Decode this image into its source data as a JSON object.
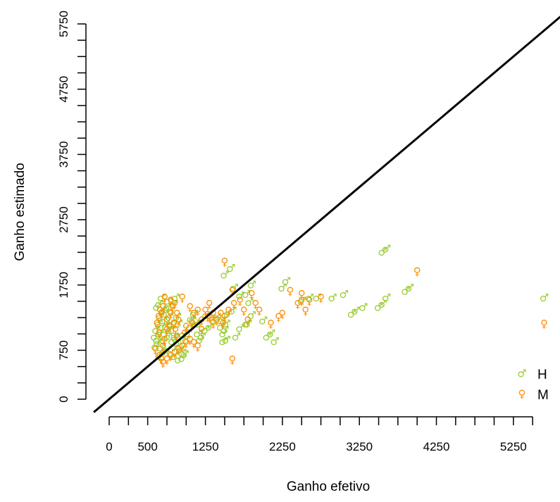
{
  "chart_data": {
    "type": "scatter",
    "xlabel": "Ganho efetivo",
    "ylabel": "Ganho estimado",
    "xlim": [
      0,
      5900
    ],
    "ylim": [
      0,
      5900
    ],
    "x_ticks": [
      0,
      250,
      500,
      750,
      1000,
      1250,
      1500,
      1750,
      2000,
      2250,
      2500,
      2750,
      3000,
      3250,
      3500,
      3750,
      4000,
      4250,
      4500,
      4750,
      5000,
      5250,
      5500
    ],
    "x_tick_labels": [
      0,
      500,
      1250,
      2250,
      3250,
      4250,
      5250
    ],
    "y_ticks": [
      0,
      250,
      500,
      750,
      1000,
      1250,
      1500,
      1750,
      2000,
      2250,
      2500,
      2750,
      3000,
      3250,
      3500,
      3750,
      4000,
      4250,
      4500,
      4750,
      5000,
      5250,
      5500,
      5750
    ],
    "y_tick_labels": [
      0,
      750,
      1750,
      2750,
      3750,
      4750,
      5750
    ],
    "reference_line": {
      "slope": 1,
      "intercept": 0,
      "color": "#000000"
    },
    "legend_position": "bottom-right",
    "series": [
      {
        "name": "H",
        "symbol": "♂",
        "color": "#9acd32",
        "points": [
          [
            1500,
            1050
          ],
          [
            1520,
            1150
          ],
          [
            1480,
            1000
          ],
          [
            1450,
            1100
          ],
          [
            1460,
            1200
          ],
          [
            1540,
            1300
          ],
          [
            1600,
            1350
          ],
          [
            1620,
            1700
          ],
          [
            1700,
            1580
          ],
          [
            1500,
            1900
          ],
          [
            1580,
            2000
          ],
          [
            1780,
            1600
          ],
          [
            1820,
            1480
          ],
          [
            1850,
            1280
          ],
          [
            1780,
            1150
          ],
          [
            1700,
            1080
          ],
          [
            1650,
            950
          ],
          [
            1520,
            900
          ],
          [
            1480,
            880
          ],
          [
            1850,
            1750
          ],
          [
            1800,
            1150
          ],
          [
            2000,
            1200
          ],
          [
            2050,
            950
          ],
          [
            2100,
            1000
          ],
          [
            2150,
            880
          ],
          [
            2250,
            1700
          ],
          [
            2300,
            1800
          ],
          [
            2500,
            1500
          ],
          [
            2600,
            1550
          ],
          [
            2700,
            1550
          ],
          [
            2900,
            1550
          ],
          [
            3050,
            1600
          ],
          [
            3150,
            1300
          ],
          [
            3200,
            1350
          ],
          [
            3300,
            1400
          ],
          [
            3500,
            1400
          ],
          [
            3550,
            1450
          ],
          [
            3600,
            1550
          ],
          [
            3550,
            2250
          ],
          [
            3600,
            2300
          ],
          [
            3850,
            1650
          ],
          [
            3900,
            1700
          ],
          [
            5650,
            1550
          ],
          [
            600,
            800
          ],
          [
            620,
            900
          ],
          [
            650,
            1000
          ],
          [
            680,
            1100
          ],
          [
            700,
            1200
          ],
          [
            720,
            1300
          ],
          [
            750,
            1400
          ],
          [
            760,
            1500
          ],
          [
            780,
            1250
          ],
          [
            800,
            1150
          ],
          [
            820,
            1050
          ],
          [
            850,
            950
          ],
          [
            880,
            850
          ],
          [
            900,
            800
          ],
          [
            920,
            750
          ],
          [
            950,
            700
          ],
          [
            980,
            680
          ],
          [
            1000,
            900
          ],
          [
            1020,
            1000
          ],
          [
            1050,
            1100
          ],
          [
            1080,
            1200
          ],
          [
            1100,
            1300
          ],
          [
            1120,
            1150
          ],
          [
            1150,
            1000
          ],
          [
            1180,
            900
          ],
          [
            1200,
            950
          ],
          [
            1250,
            1050
          ],
          [
            1300,
            1100
          ],
          [
            1350,
            1200
          ],
          [
            1400,
            1250
          ],
          [
            650,
            650
          ],
          [
            700,
            700
          ],
          [
            750,
            750
          ],
          [
            800,
            700
          ],
          [
            850,
            650
          ],
          [
            900,
            600
          ],
          [
            950,
            620
          ],
          [
            700,
            900
          ],
          [
            720,
            1000
          ],
          [
            740,
            1100
          ],
          [
            760,
            950
          ],
          [
            780,
            1050
          ],
          [
            800,
            1350
          ],
          [
            840,
            1450
          ],
          [
            860,
            1550
          ],
          [
            880,
            1250
          ],
          [
            900,
            1150
          ],
          [
            650,
            1450
          ],
          [
            680,
            1550
          ],
          [
            620,
            1400
          ],
          [
            700,
            1350
          ],
          [
            660,
            1250
          ],
          [
            640,
            1150
          ],
          [
            610,
            1050
          ],
          [
            590,
            950
          ],
          [
            630,
            850
          ],
          [
            670,
            780
          ],
          [
            820,
            880
          ],
          [
            860,
            920
          ],
          [
            960,
            980
          ],
          [
            1060,
            1220
          ],
          [
            1160,
            1150
          ],
          [
            1260,
            1280
          ]
        ]
      },
      {
        "name": "M",
        "symbol": "♀",
        "color": "#ff8c00",
        "points": [
          [
            1500,
            2100
          ],
          [
            1600,
            1650
          ],
          [
            1620,
            1450
          ],
          [
            1550,
            1350
          ],
          [
            1500,
            1250
          ],
          [
            1480,
            1150
          ],
          [
            1450,
            1300
          ],
          [
            1400,
            1200
          ],
          [
            1350,
            1150
          ],
          [
            1300,
            1250
          ],
          [
            1700,
            1500
          ],
          [
            1750,
            1350
          ],
          [
            1800,
            1200
          ],
          [
            1850,
            1600
          ],
          [
            1900,
            1450
          ],
          [
            1950,
            1350
          ],
          [
            1600,
            600
          ],
          [
            2100,
            1150
          ],
          [
            2200,
            1250
          ],
          [
            2250,
            1300
          ],
          [
            2350,
            1650
          ],
          [
            2450,
            1450
          ],
          [
            2500,
            1500
          ],
          [
            2550,
            1350
          ],
          [
            2500,
            1600
          ],
          [
            2600,
            1500
          ],
          [
            2750,
            1550
          ],
          [
            4000,
            1950
          ],
          [
            5650,
            1150
          ],
          [
            600,
            750
          ],
          [
            650,
            1000
          ],
          [
            680,
            1300
          ],
          [
            700,
            1400
          ],
          [
            720,
            1550
          ],
          [
            750,
            1200
          ],
          [
            780,
            1100
          ],
          [
            800,
            1500
          ],
          [
            850,
            1450
          ],
          [
            880,
            1300
          ],
          [
            900,
            1200
          ],
          [
            950,
            1550
          ],
          [
            980,
            1000
          ],
          [
            1000,
            1100
          ],
          [
            1050,
            1400
          ],
          [
            1080,
            1150
          ],
          [
            1100,
            1300
          ],
          [
            1150,
            1350
          ],
          [
            1200,
            1200
          ],
          [
            1250,
            1350
          ],
          [
            1280,
            1250
          ],
          [
            650,
            650
          ],
          [
            700,
            800
          ],
          [
            720,
            900
          ],
          [
            750,
            1050
          ],
          [
            680,
            600
          ],
          [
            700,
            550
          ],
          [
            750,
            600
          ],
          [
            800,
            650
          ],
          [
            850,
            700
          ],
          [
            900,
            750
          ],
          [
            950,
            800
          ],
          [
            1000,
            850
          ],
          [
            1050,
            900
          ],
          [
            1100,
            850
          ],
          [
            1150,
            800
          ],
          [
            620,
            1150
          ],
          [
            640,
            1250
          ],
          [
            660,
            1350
          ],
          [
            800,
            1300
          ],
          [
            820,
            1400
          ],
          [
            840,
            1150
          ],
          [
            860,
            1050
          ],
          [
            880,
            950
          ],
          [
            1200,
            1050
          ],
          [
            1300,
            1450
          ],
          [
            1350,
            1300
          ]
        ]
      }
    ]
  }
}
